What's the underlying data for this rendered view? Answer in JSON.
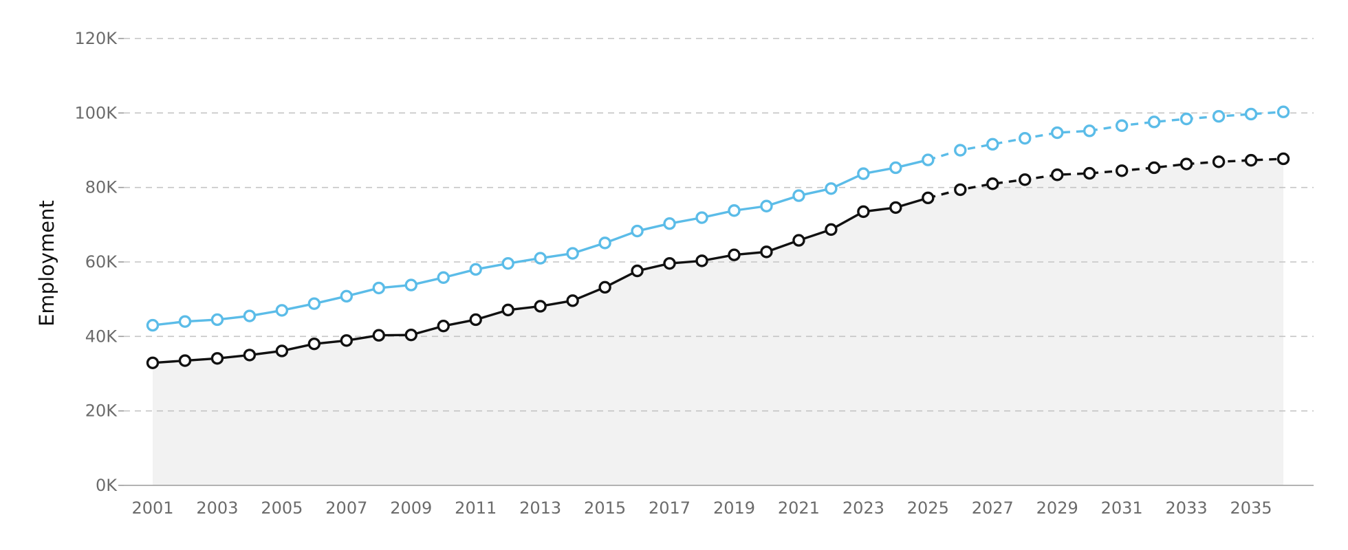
{
  "chart_data": {
    "type": "line",
    "ylabel": "Employment",
    "xlabel": "",
    "title": "",
    "ylim": [
      0,
      120000
    ],
    "y_ticks": [
      0,
      20000,
      40000,
      60000,
      80000,
      100000,
      120000
    ],
    "y_tick_labels": [
      "0K",
      "20K",
      "40K",
      "60K",
      "80K",
      "100K",
      "120K"
    ],
    "x_tick_labels": [
      "2001",
      "2003",
      "2005",
      "2007",
      "2009",
      "2011",
      "2013",
      "2015",
      "2017",
      "2019",
      "2021",
      "2023",
      "2025",
      "2027",
      "2029",
      "2031",
      "2033",
      "2035"
    ],
    "x": [
      2001,
      2002,
      2003,
      2004,
      2005,
      2006,
      2007,
      2008,
      2009,
      2010,
      2011,
      2012,
      2013,
      2014,
      2015,
      2016,
      2017,
      2018,
      2019,
      2020,
      2021,
      2022,
      2023,
      2024,
      2025,
      2026,
      2027,
      2028,
      2029,
      2030,
      2031,
      2032,
      2033,
      2034,
      2035,
      2036
    ],
    "projection_start": 2025,
    "grid": true,
    "series": [
      {
        "color": "#5bbce8",
        "values": [
          43000,
          44000,
          44500,
          45500,
          47000,
          48800,
          50800,
          53000,
          53800,
          55800,
          58000,
          59600,
          61000,
          62300,
          65100,
          68300,
          70300,
          71900,
          73800,
          75000,
          77800,
          79700,
          83700,
          85300,
          87400,
          90000,
          91600,
          93200,
          94700,
          95200,
          96600,
          97600,
          98400,
          99100,
          99700,
          100300
        ]
      },
      {
        "color": "#111111",
        "values": [
          32900,
          33500,
          34100,
          35000,
          36100,
          38000,
          38900,
          40300,
          40400,
          42800,
          44500,
          47100,
          48100,
          49600,
          53200,
          57600,
          59600,
          60300,
          61900,
          62700,
          65800,
          68700,
          73500,
          74600,
          77200,
          79400,
          81000,
          82100,
          83400,
          83800,
          84500,
          85300,
          86300,
          86900,
          87300,
          87700
        ]
      }
    ],
    "area_under_series": 1,
    "area_color": "#f2f2f2"
  }
}
